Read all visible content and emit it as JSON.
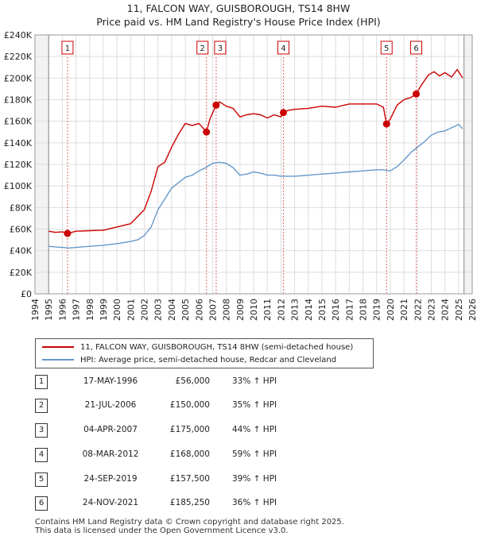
{
  "chart_data": {
    "type": "line",
    "title": "11, FALCON WAY, GUISBOROUGH, TS14 8HW",
    "subtitle": "Price paid vs. HM Land Registry's House Price Index (HPI)",
    "xlim": [
      1994,
      2026
    ],
    "ylim": [
      0,
      240000
    ],
    "xticks": [
      1994,
      1995,
      1996,
      1997,
      1998,
      1999,
      2000,
      2001,
      2002,
      2003,
      2004,
      2005,
      2006,
      2007,
      2008,
      2009,
      2010,
      2011,
      2012,
      2013,
      2014,
      2015,
      2016,
      2017,
      2018,
      2019,
      2020,
      2021,
      2022,
      2023,
      2024,
      2025,
      2026
    ],
    "yticks": [
      0,
      20000,
      40000,
      60000,
      80000,
      100000,
      120000,
      140000,
      160000,
      180000,
      200000,
      220000,
      240000
    ],
    "ytick_labels": [
      "£0",
      "£20K",
      "£40K",
      "£60K",
      "£80K",
      "£100K",
      "£120K",
      "£140K",
      "£160K",
      "£180K",
      "£200K",
      "£220K",
      "£240K"
    ],
    "grid": true,
    "data_start": 1995,
    "data_end": 2025.4,
    "series": [
      {
        "name": "11, FALCON WAY, GUISBOROUGH, TS14 8HW (semi-detached house)",
        "color": "#cc0000",
        "x": [
          1995.0,
          1995.5,
          1996.0,
          1996.38,
          1997.0,
          1998.0,
          1999.0,
          2000.0,
          2001.0,
          2002.0,
          2002.5,
          2003.0,
          2003.5,
          2004.0,
          2004.5,
          2005.0,
          2005.5,
          2006.0,
          2006.55,
          2006.8,
          2007.26,
          2007.5,
          2008.0,
          2008.5,
          2009.0,
          2009.5,
          2010.0,
          2010.5,
          2011.0,
          2011.5,
          2012.0,
          2012.18,
          2012.5,
          2013.0,
          2014.0,
          2015.0,
          2016.0,
          2017.0,
          2018.0,
          2019.0,
          2019.5,
          2019.73,
          2020.0,
          2020.5,
          2021.0,
          2021.5,
          2021.9,
          2022.3,
          2022.8,
          2023.2,
          2023.6,
          2024.0,
          2024.5,
          2024.9,
          2025.3
        ],
        "y": [
          58000,
          57000,
          57500,
          56000,
          58000,
          58500,
          59000,
          62000,
          65000,
          78000,
          95000,
          118000,
          122000,
          136000,
          148000,
          158000,
          156000,
          158000,
          150000,
          162000,
          175000,
          178000,
          174000,
          172000,
          164000,
          166000,
          167000,
          166000,
          163000,
          166000,
          164000,
          168000,
          170000,
          171000,
          172000,
          174000,
          173000,
          176000,
          176000,
          176000,
          173000,
          157500,
          162000,
          175000,
          180000,
          182000,
          185250,
          194000,
          203000,
          206000,
          202000,
          205000,
          201000,
          208000,
          200000
        ]
      },
      {
        "name": "HPI: Average price, semi-detached house, Redcar and Cleveland",
        "color": "#6699cc",
        "x": [
          1995.0,
          1995.5,
          1996.0,
          1996.5,
          1997.0,
          1998.0,
          1999.0,
          2000.0,
          2001.0,
          2001.5,
          2002.0,
          2002.5,
          2003.0,
          2003.5,
          2004.0,
          2004.5,
          2005.0,
          2005.5,
          2006.0,
          2006.5,
          2007.0,
          2007.5,
          2008.0,
          2008.5,
          2009.0,
          2009.5,
          2010.0,
          2010.5,
          2011.0,
          2011.5,
          2012.0,
          2013.0,
          2014.0,
          2015.0,
          2016.0,
          2017.0,
          2018.0,
          2019.0,
          2019.5,
          2020.0,
          2020.5,
          2021.0,
          2021.5,
          2022.0,
          2022.5,
          2023.0,
          2023.5,
          2024.0,
          2024.5,
          2025.0,
          2025.3
        ],
        "y": [
          44000,
          43500,
          43000,
          42500,
          43000,
          44000,
          45000,
          46500,
          48500,
          50000,
          54000,
          62000,
          78000,
          88000,
          98000,
          103000,
          108000,
          110000,
          114000,
          117000,
          121000,
          122000,
          121000,
          117000,
          110000,
          111000,
          113000,
          112000,
          110000,
          110000,
          109000,
          109000,
          110000,
          111000,
          112000,
          113000,
          114000,
          115000,
          115000,
          114000,
          118000,
          124000,
          131000,
          136000,
          141000,
          147000,
          150000,
          151000,
          154000,
          157000,
          153000
        ]
      }
    ],
    "sales": [
      {
        "label": "1",
        "x": 1996.38,
        "y": 56000
      },
      {
        "label": "2",
        "x": 2006.55,
        "y": 150000
      },
      {
        "label": "3",
        "x": 2007.26,
        "y": 175000
      },
      {
        "label": "4",
        "x": 2012.18,
        "y": 168000
      },
      {
        "label": "5",
        "x": 2019.73,
        "y": 157500
      },
      {
        "label": "6",
        "x": 2021.9,
        "y": 185250
      }
    ]
  },
  "legend": {
    "property_label": "11, FALCON WAY, GUISBOROUGH, TS14 8HW (semi-detached house)",
    "hpi_label": "HPI: Average price, semi-detached house, Redcar and Cleveland",
    "property_color": "#cc0000",
    "hpi_color": "#6699cc"
  },
  "sales_table": [
    {
      "num": "1",
      "date": "17-MAY-1996",
      "price": "£56,000",
      "hpi": "33% ↑ HPI"
    },
    {
      "num": "2",
      "date": "21-JUL-2006",
      "price": "£150,000",
      "hpi": "35% ↑ HPI"
    },
    {
      "num": "3",
      "date": "04-APR-2007",
      "price": "£175,000",
      "hpi": "44% ↑ HPI"
    },
    {
      "num": "4",
      "date": "08-MAR-2012",
      "price": "£168,000",
      "hpi": "59% ↑ HPI"
    },
    {
      "num": "5",
      "date": "24-SEP-2019",
      "price": "£157,500",
      "hpi": "39% ↑ HPI"
    },
    {
      "num": "6",
      "date": "24-NOV-2021",
      "price": "£185,250",
      "hpi": "36% ↑ HPI"
    }
  ],
  "footer": {
    "line1": "Contains HM Land Registry data © Crown copyright and database right 2025.",
    "line2": "This data is licensed under the Open Government Licence v3.0."
  }
}
